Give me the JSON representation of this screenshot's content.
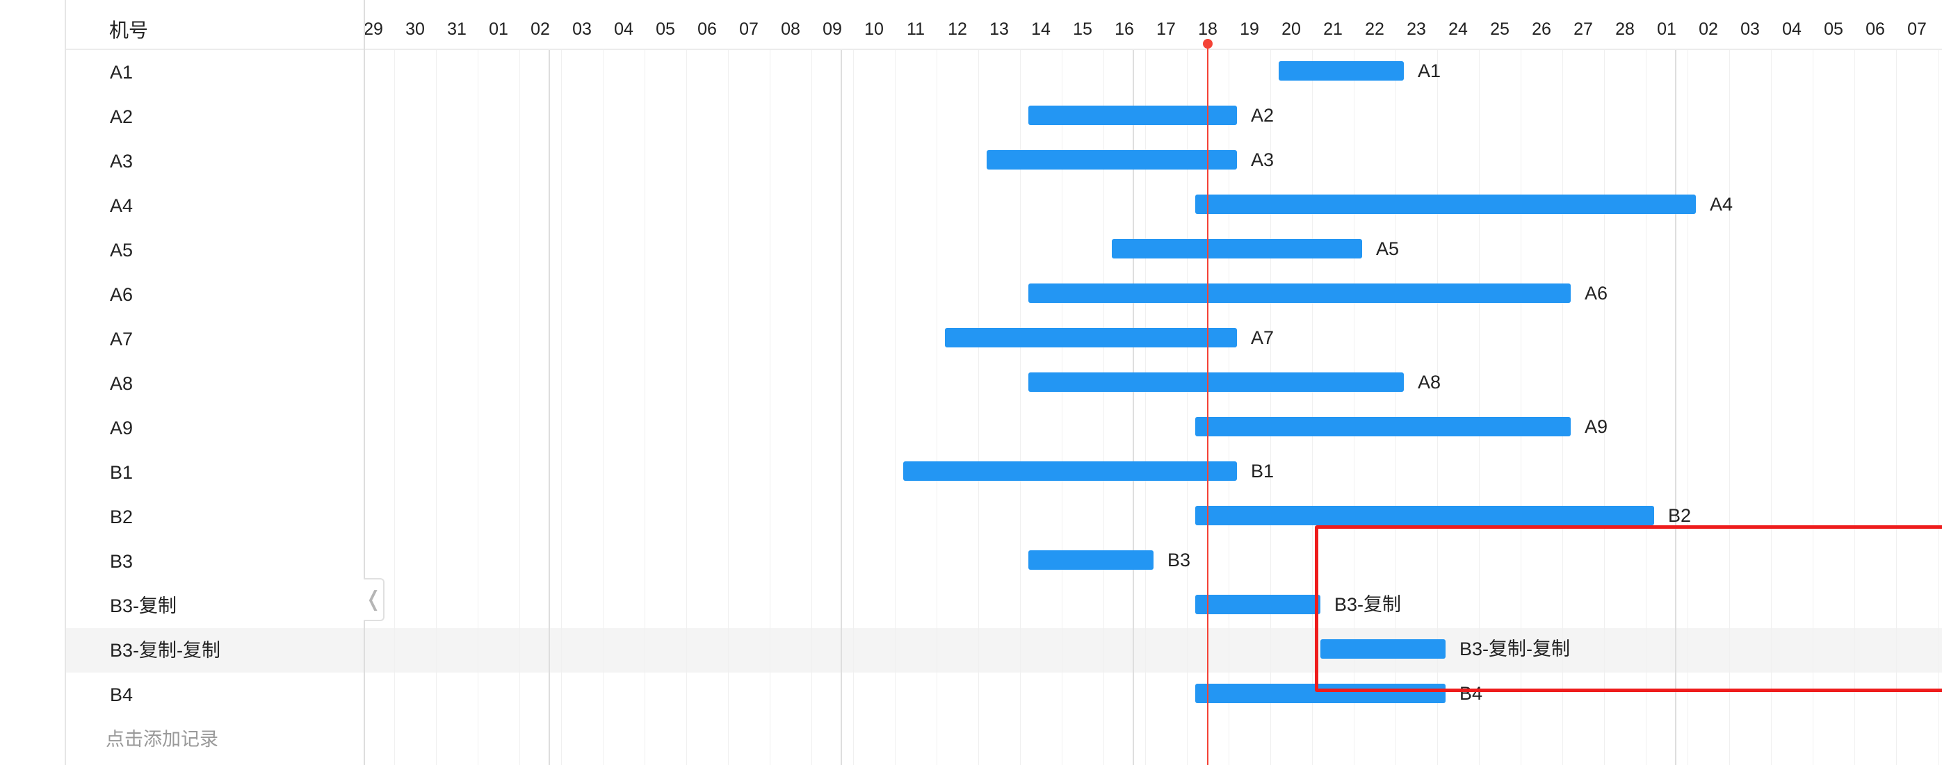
{
  "header": {
    "machine_column_label": "机号"
  },
  "timeline": {
    "days": [
      "29",
      "30",
      "31",
      "01",
      "02",
      "03",
      "04",
      "05",
      "06",
      "07",
      "08",
      "09",
      "10",
      "11",
      "12",
      "13",
      "14",
      "15",
      "16",
      "17",
      "18",
      "19",
      "20",
      "21",
      "22",
      "23",
      "24",
      "25",
      "26",
      "27",
      "28",
      "01",
      "02",
      "03",
      "04",
      "05",
      "06",
      "07"
    ],
    "today": "18",
    "highlighted_row": "B3-复制-复制"
  },
  "rows": [
    {
      "label": "A1",
      "start_day_index": 21.7,
      "end_day_index": 24.7,
      "bar_label": "A1"
    },
    {
      "label": "A2",
      "start_day_index": 15.7,
      "end_day_index": 20.7,
      "bar_label": "A2"
    },
    {
      "label": "A3",
      "start_day_index": 14.7,
      "end_day_index": 20.7,
      "bar_label": "A3"
    },
    {
      "label": "A4",
      "start_day_index": 19.7,
      "end_day_index": 31.7,
      "bar_label": "A4"
    },
    {
      "label": "A5",
      "start_day_index": 17.7,
      "end_day_index": 23.7,
      "bar_label": "A5"
    },
    {
      "label": "A6",
      "start_day_index": 15.7,
      "end_day_index": 28.7,
      "bar_label": "A6"
    },
    {
      "label": "A7",
      "start_day_index": 13.7,
      "end_day_index": 20.7,
      "bar_label": "A7"
    },
    {
      "label": "A8",
      "start_day_index": 15.7,
      "end_day_index": 24.7,
      "bar_label": "A8"
    },
    {
      "label": "A9",
      "start_day_index": 19.7,
      "end_day_index": 28.7,
      "bar_label": "A9"
    },
    {
      "label": "B1",
      "start_day_index": 12.7,
      "end_day_index": 20.7,
      "bar_label": "B1"
    },
    {
      "label": "B2",
      "start_day_index": 19.7,
      "end_day_index": 30.7,
      "bar_label": "B2"
    },
    {
      "label": "B3",
      "start_day_index": 15.7,
      "end_day_index": 18.7,
      "bar_label": "B3"
    },
    {
      "label": "B3-复制",
      "start_day_index": 19.7,
      "end_day_index": 22.7,
      "bar_label": "B3-复制"
    },
    {
      "label": "B3-复制-复制",
      "start_day_index": 22.7,
      "end_day_index": 25.7,
      "bar_label": "B3-复制-复制"
    },
    {
      "label": "B4",
      "start_day_index": 19.7,
      "end_day_index": 25.7,
      "bar_label": "B4"
    }
  ],
  "footer": {
    "add_record_label": "点击添加记录"
  },
  "collapse_handle_glyph": "❬",
  "colors": {
    "bar": "#2396f3",
    "today_line": "#f44336",
    "selection_box": "#ee1c1c",
    "row_highlight": "#f4f4f4"
  }
}
